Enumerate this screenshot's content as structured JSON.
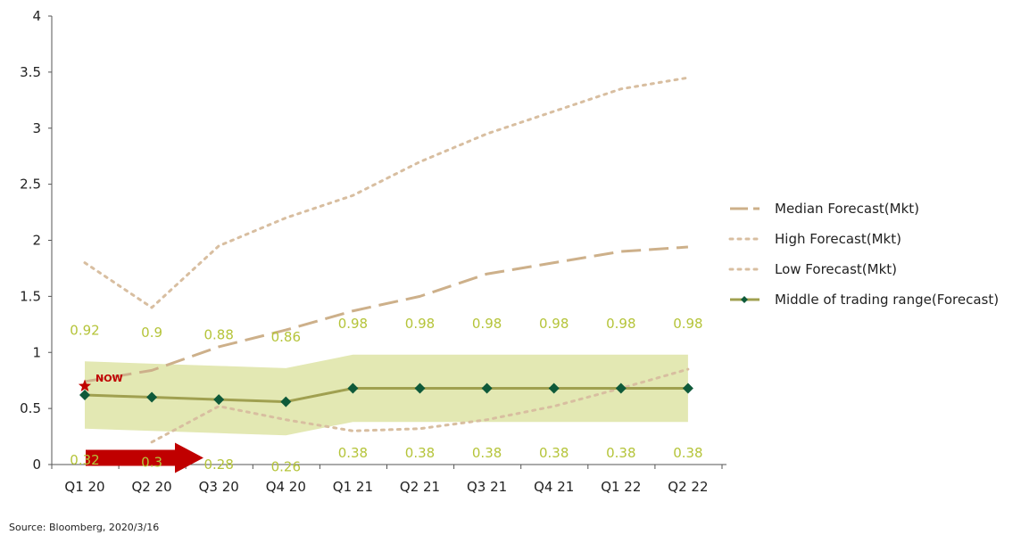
{
  "chart_data": {
    "type": "line",
    "categories": [
      "Q1 20",
      "Q2 20",
      "Q3 20",
      "Q4 20",
      "Q1 21",
      "Q2 21",
      "Q3 21",
      "Q4 21",
      "Q1 22",
      "Q2 22"
    ],
    "ylim": [
      0,
      4
    ],
    "yticks": [
      "0",
      "0.5",
      "1",
      "1.5",
      "2",
      "2.5",
      "3",
      "3.5",
      "4"
    ],
    "grid": false,
    "legend": "right",
    "series": [
      {
        "name": "Median Forecast(Mkt)",
        "style": "dashed",
        "color": "#cdb08a",
        "values": [
          0.74,
          0.84,
          1.05,
          1.2,
          1.37,
          1.5,
          1.7,
          1.8,
          1.9,
          1.94
        ]
      },
      {
        "name": "High Forecast(Mkt)",
        "style": "dotted",
        "color": "#d8bea0",
        "values": [
          1.8,
          1.4,
          1.95,
          2.2,
          2.4,
          2.7,
          2.95,
          3.15,
          3.35,
          3.45
        ]
      },
      {
        "name": "Low Forecast(Mkt)",
        "style": "dotted",
        "color": "#d8bea0",
        "values": [
          null,
          0.2,
          0.52,
          0.4,
          0.3,
          0.32,
          0.4,
          0.52,
          0.68,
          0.85
        ]
      },
      {
        "name": "Middle of trading range(Forecast)",
        "style": "solid-marker",
        "color": "#a0a050",
        "marker_color": "#0f5a3a",
        "values": [
          0.62,
          0.6,
          0.58,
          0.56,
          0.68,
          0.68,
          0.68,
          0.68,
          0.68,
          0.68
        ]
      }
    ],
    "trading_range": {
      "color": "#e3e8b3",
      "upper": [
        0.92,
        0.9,
        0.88,
        0.86,
        0.98,
        0.98,
        0.98,
        0.98,
        0.98,
        0.98
      ],
      "lower": [
        0.32,
        0.3,
        0.28,
        0.26,
        0.38,
        0.38,
        0.38,
        0.38,
        0.38,
        0.38
      ],
      "upper_labels": [
        "0.92",
        "0.9",
        "0.88",
        "0.86",
        "0.98",
        "0.98",
        "0.98",
        "0.98",
        "0.98",
        "0.98"
      ],
      "lower_labels": [
        "0.32",
        "0.3",
        "0.28",
        "0.26",
        "0.38",
        "0.38",
        "0.38",
        "0.38",
        "0.38",
        "0.38"
      ]
    },
    "now_marker": {
      "label": "NOW",
      "category": "Q1 20",
      "value": 0.7,
      "color": "#c00000"
    },
    "arrow": {
      "from_value": 0.06,
      "color": "#c00000"
    }
  },
  "source": "Source: Bloomberg, 2020/3/16"
}
